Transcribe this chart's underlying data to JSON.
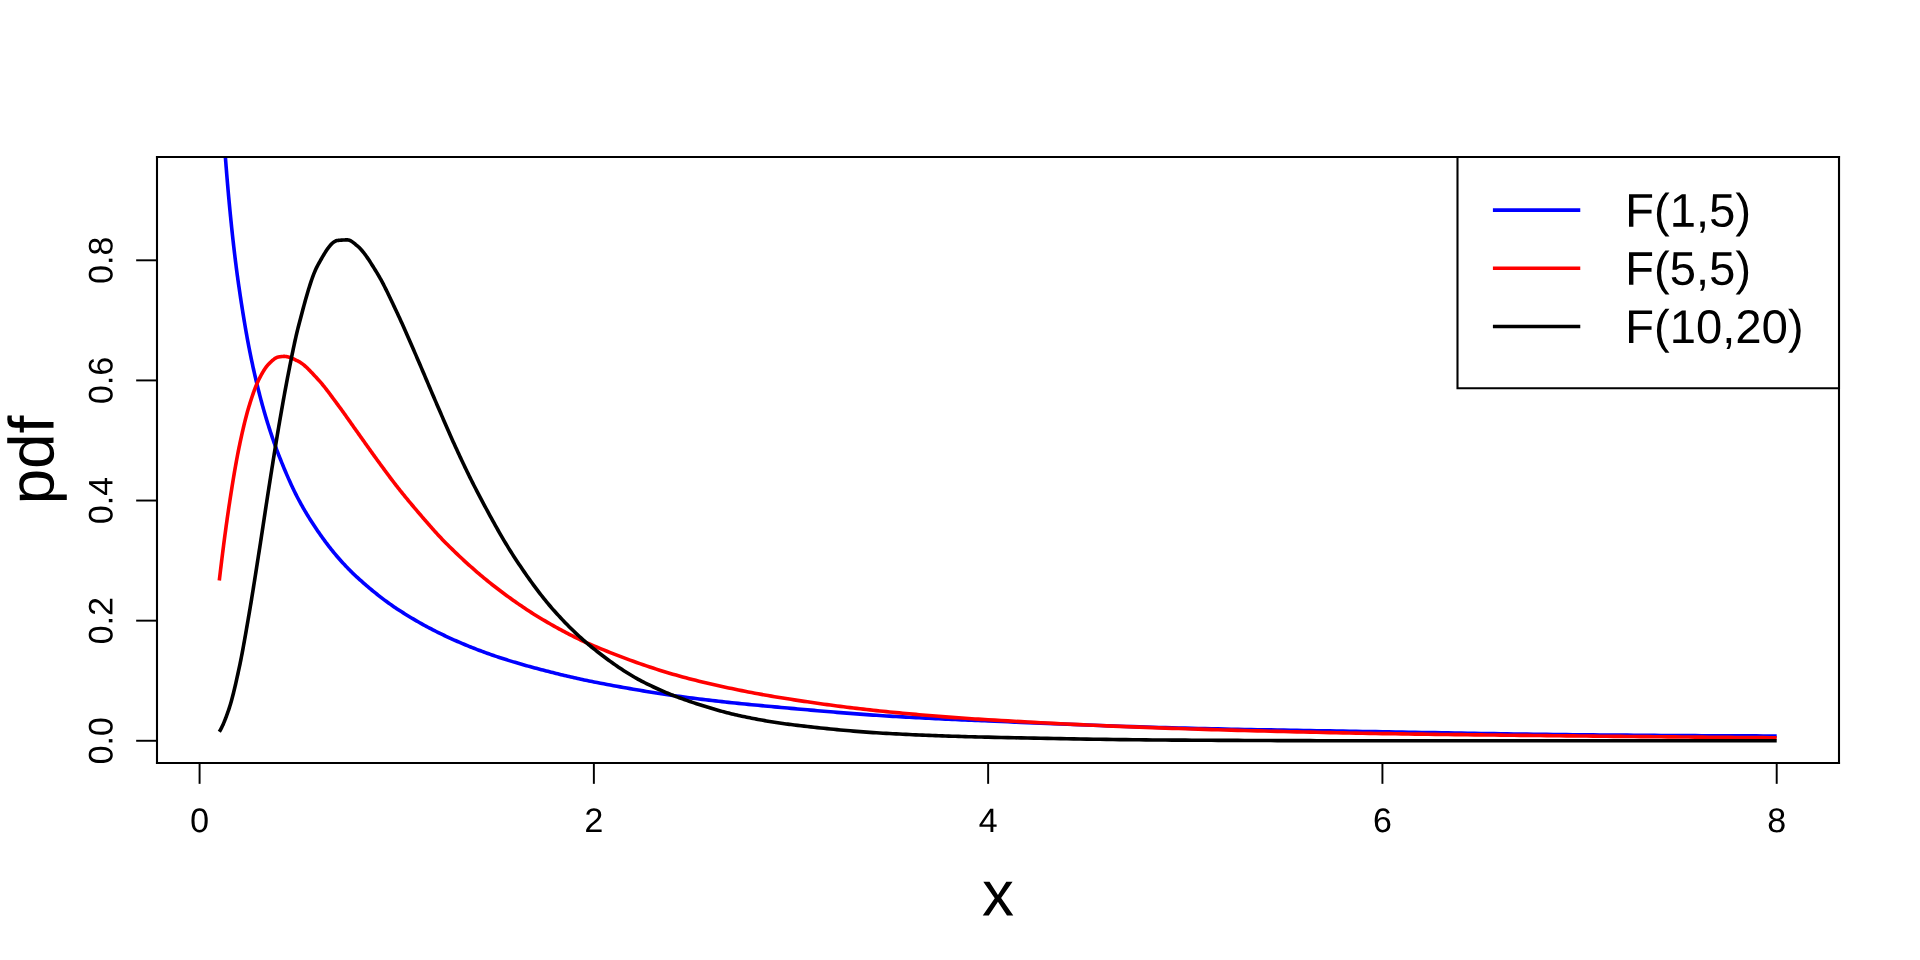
{
  "chart_data": {
    "type": "line",
    "xlabel": "x",
    "ylabel": "pdf",
    "xlim": [
      -0.216,
      8.316
    ],
    "ylim": [
      -0.037,
      0.972
    ],
    "xticks": [
      0,
      2,
      4,
      6,
      8
    ],
    "yticks": [
      {
        "value": 0,
        "label": "0.0"
      },
      {
        "value": 0.2,
        "label": "0.2"
      },
      {
        "value": 0.4,
        "label": "0.4"
      },
      {
        "value": 0.6,
        "label": "0.6"
      },
      {
        "value": 0.8,
        "label": "0.8"
      }
    ],
    "legend": "top right",
    "line_style": "solid",
    "marker": "none",
    "series": [
      {
        "name": "F(1,5)",
        "color": "#0000ff",
        "x": [
          0.131,
          0.15,
          0.175,
          0.2,
          0.25,
          0.3,
          0.35,
          0.4,
          0.5,
          0.6,
          0.7,
          0.8,
          1.0,
          1.25,
          1.5,
          1.75,
          2,
          2.5,
          3,
          3.5,
          4,
          5,
          6,
          7,
          8
        ],
        "values": [
          0.971,
          0.897,
          0.818,
          0.755,
          0.656,
          0.582,
          0.524,
          0.477,
          0.403,
          0.349,
          0.306,
          0.272,
          0.22,
          0.174,
          0.141,
          0.117,
          0.098,
          0.071,
          0.054,
          0.041,
          0.033,
          0.021,
          0.015,
          0.01,
          0.008
        ]
      },
      {
        "name": "F(5,5)",
        "color": "#ff0000",
        "x": [
          0.1,
          0.15,
          0.2,
          0.25,
          0.3,
          0.35,
          0.4,
          0.43,
          0.5,
          0.6,
          0.7,
          0.8,
          0.9,
          1.0,
          1.1,
          1.25,
          1.5,
          1.75,
          2,
          2.5,
          3,
          3.5,
          4,
          5,
          6,
          7,
          8
        ],
        "values": [
          0.267,
          0.392,
          0.488,
          0.556,
          0.601,
          0.627,
          0.639,
          0.64,
          0.632,
          0.602,
          0.56,
          0.514,
          0.468,
          0.424,
          0.384,
          0.329,
          0.256,
          0.2,
          0.158,
          0.102,
          0.069,
          0.048,
          0.035,
          0.02,
          0.012,
          0.008,
          0.005
        ]
      },
      {
        "name": "F(10,20)",
        "color": "#000000",
        "x": [
          0.1,
          0.15,
          0.2,
          0.25,
          0.3,
          0.35,
          0.4,
          0.45,
          0.5,
          0.6,
          0.7,
          0.75,
          0.8,
          0.9,
          1.0,
          1.1,
          1.2,
          1.3,
          1.4,
          1.6,
          1.8,
          2.0,
          2.25,
          2.5,
          2.75,
          3,
          3.5,
          4,
          5,
          6,
          7,
          8
        ],
        "values": [
          0.015,
          0.054,
          0.12,
          0.209,
          0.311,
          0.418,
          0.52,
          0.611,
          0.688,
          0.792,
          0.833,
          0.834,
          0.824,
          0.779,
          0.714,
          0.64,
          0.563,
          0.488,
          0.42,
          0.304,
          0.216,
          0.153,
          0.098,
          0.064,
          0.041,
          0.027,
          0.012,
          0.006,
          0.001,
          0.0,
          0.0,
          0.0
        ]
      }
    ]
  }
}
